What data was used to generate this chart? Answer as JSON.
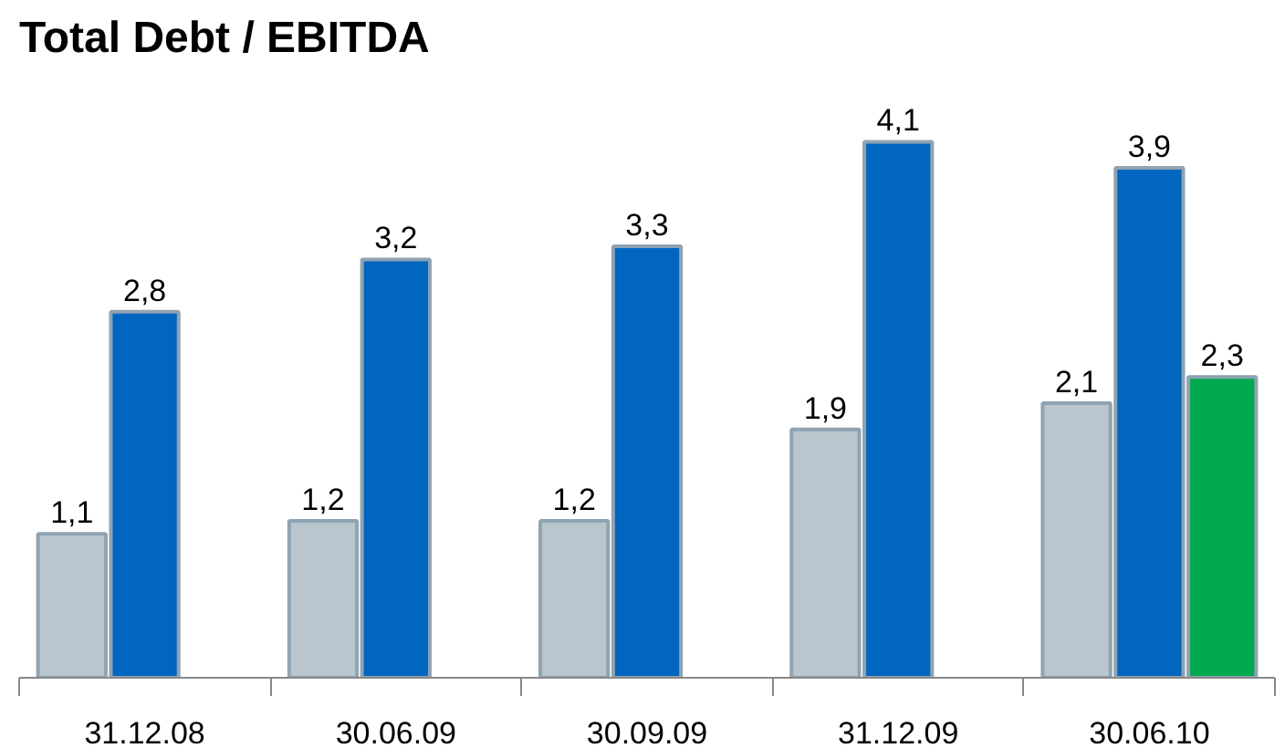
{
  "chart_data": {
    "type": "bar",
    "title": "Total Debt / EBITDA",
    "categories": [
      "31.12.08",
      "30.06.09",
      "30.09.09",
      "31.12.09",
      "30.06.10"
    ],
    "series": [
      {
        "color": "#b9c6cd",
        "values": [
          1.1,
          1.2,
          1.2,
          1.9,
          2.1
        ],
        "value_labels": [
          "1,1",
          "1,2",
          "1,2",
          "1,9",
          "2,1"
        ]
      },
      {
        "color": "#0066c0",
        "values": [
          2.8,
          3.2,
          3.3,
          4.1,
          3.9
        ],
        "value_labels": [
          "2,8",
          "3,2",
          "3,3",
          "4,1",
          "3,9"
        ]
      },
      {
        "color": "#00a84f",
        "values": [
          null,
          null,
          null,
          null,
          2.3
        ],
        "value_labels": [
          null,
          null,
          null,
          null,
          "2,3"
        ]
      }
    ],
    "stacked": false
  }
}
